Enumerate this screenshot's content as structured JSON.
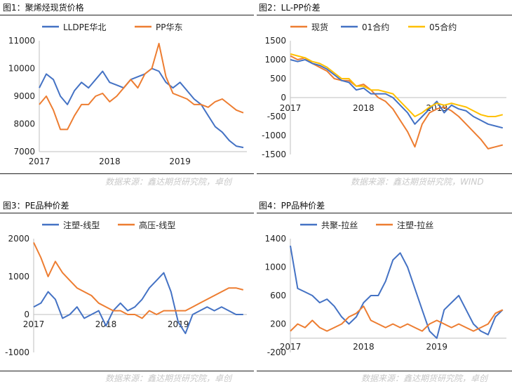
{
  "panels": [
    {
      "title": "图1：聚烯烃现货价格",
      "source": "数据来源：鑫达期货研究院，卓创"
    },
    {
      "title": "图2：LL-PP价差",
      "source": "数据来源：鑫达期货研究院，WIND"
    },
    {
      "title": "图3：PE品种价差",
      "source": "数据来源：鑫达期货研究院，卓创"
    },
    {
      "title": "图4：PP品种价差",
      "source": "数据来源：鑫达期货研究院，卓创"
    }
  ],
  "colors": {
    "blue": "#4472C4",
    "orange": "#ED7D31",
    "gold": "#FFC000"
  },
  "chart_data": [
    {
      "type": "line",
      "ylim": [
        7000,
        11000
      ],
      "yticks": [
        7000,
        8000,
        9000,
        10000,
        11000
      ],
      "xticks": [
        2017,
        2018,
        2019
      ],
      "xlim": [
        2017.0,
        2019.95
      ],
      "legend_position": "top",
      "series": [
        {
          "name": "LLDPE华北",
          "color": "blue",
          "x": [
            2017.0,
            2017.1,
            2017.2,
            2017.3,
            2017.4,
            2017.5,
            2017.6,
            2017.7,
            2017.8,
            2017.9,
            2018.0,
            2018.1,
            2018.2,
            2018.3,
            2018.4,
            2018.5,
            2018.6,
            2018.7,
            2018.8,
            2018.9,
            2019.0,
            2019.1,
            2019.2,
            2019.3,
            2019.4,
            2019.5,
            2019.6,
            2019.7,
            2019.8,
            2019.9
          ],
          "y": [
            9300,
            9800,
            9600,
            9000,
            8700,
            9200,
            9500,
            9300,
            9600,
            9900,
            9500,
            9400,
            9300,
            9600,
            9700,
            9800,
            10000,
            9900,
            9500,
            9300,
            9500,
            9200,
            8900,
            8700,
            8300,
            7900,
            7700,
            7400,
            7200,
            7150
          ]
        },
        {
          "name": "PP华东",
          "color": "orange",
          "x": [
            2017.0,
            2017.1,
            2017.2,
            2017.3,
            2017.4,
            2017.5,
            2017.6,
            2017.7,
            2017.8,
            2017.9,
            2018.0,
            2018.1,
            2018.2,
            2018.3,
            2018.4,
            2018.5,
            2018.6,
            2018.7,
            2018.8,
            2018.9,
            2019.0,
            2019.1,
            2019.2,
            2019.3,
            2019.4,
            2019.5,
            2019.6,
            2019.7,
            2019.8,
            2019.9
          ],
          "y": [
            8700,
            9000,
            8500,
            7800,
            7800,
            8300,
            8700,
            8700,
            9000,
            9100,
            8800,
            9000,
            9300,
            9600,
            9300,
            9800,
            10000,
            10900,
            9700,
            9100,
            9000,
            8900,
            8700,
            8700,
            8600,
            8800,
            8900,
            8700,
            8500,
            8400
          ]
        }
      ]
    },
    {
      "type": "line",
      "ylim": [
        -1500,
        1500
      ],
      "yticks": [
        -1500,
        -1000,
        -500,
        0,
        500,
        1000,
        1500
      ],
      "xticks": [
        2017,
        2018,
        2019
      ],
      "xlim": [
        2017.0,
        2019.95
      ],
      "legend_position": "top",
      "series": [
        {
          "name": "现货",
          "color": "orange",
          "x": [
            2017.0,
            2017.1,
            2017.2,
            2017.3,
            2017.4,
            2017.5,
            2017.6,
            2017.7,
            2017.8,
            2017.9,
            2018.0,
            2018.1,
            2018.2,
            2018.3,
            2018.4,
            2018.5,
            2018.6,
            2018.7,
            2018.8,
            2018.9,
            2019.0,
            2019.1,
            2019.2,
            2019.3,
            2019.4,
            2019.5,
            2019.6,
            2019.7,
            2019.8,
            2019.9
          ],
          "y": [
            1100,
            1000,
            1050,
            900,
            800,
            700,
            500,
            450,
            450,
            300,
            350,
            200,
            0,
            -100,
            -300,
            -600,
            -900,
            -1300,
            -700,
            -400,
            -300,
            -250,
            -350,
            -500,
            -700,
            -900,
            -1100,
            -1350,
            -1300,
            -1250
          ]
        },
        {
          "name": "01合约",
          "color": "blue",
          "x": [
            2017.0,
            2017.1,
            2017.2,
            2017.3,
            2017.4,
            2017.5,
            2017.6,
            2017.7,
            2017.8,
            2017.9,
            2018.0,
            2018.1,
            2018.2,
            2018.3,
            2018.4,
            2018.5,
            2018.6,
            2018.7,
            2018.8,
            2018.9,
            2019.0,
            2019.1,
            2019.2,
            2019.3,
            2019.4,
            2019.5,
            2019.6,
            2019.7,
            2019.8,
            2019.9
          ],
          "y": [
            1000,
            950,
            1000,
            900,
            850,
            750,
            600,
            450,
            400,
            200,
            250,
            100,
            100,
            100,
            0,
            -200,
            -400,
            -700,
            -500,
            -300,
            -100,
            -400,
            -200,
            -300,
            -350,
            -500,
            -600,
            -700,
            -750,
            -800
          ]
        },
        {
          "name": "05合约",
          "color": "gold",
          "x": [
            2017.0,
            2017.1,
            2017.2,
            2017.3,
            2017.4,
            2017.5,
            2017.6,
            2017.7,
            2017.8,
            2017.9,
            2018.0,
            2018.1,
            2018.2,
            2018.3,
            2018.4,
            2018.5,
            2018.6,
            2018.7,
            2018.8,
            2018.9,
            2019.0,
            2019.1,
            2019.2,
            2019.3,
            2019.4,
            2019.5,
            2019.6,
            2019.7,
            2019.8,
            2019.9
          ],
          "y": [
            1150,
            1100,
            1050,
            950,
            900,
            800,
            650,
            500,
            500,
            300,
            300,
            200,
            200,
            150,
            100,
            -100,
            -300,
            -500,
            -400,
            -250,
            -150,
            -200,
            -150,
            -200,
            -250,
            -350,
            -450,
            -500,
            -500,
            -450
          ]
        }
      ]
    },
    {
      "type": "line",
      "ylim": [
        -1000,
        2000
      ],
      "yticks": [
        -1000,
        0,
        1000,
        2000
      ],
      "xticks": [
        2017,
        2018,
        2019
      ],
      "xlim": [
        2017.0,
        2019.95
      ],
      "legend_position": "top",
      "series": [
        {
          "name": "注塑-线型",
          "color": "blue",
          "x": [
            2017.0,
            2017.1,
            2017.2,
            2017.3,
            2017.4,
            2017.5,
            2017.6,
            2017.7,
            2017.8,
            2017.9,
            2018.0,
            2018.1,
            2018.2,
            2018.3,
            2018.4,
            2018.5,
            2018.6,
            2018.7,
            2018.8,
            2018.9,
            2019.0,
            2019.1,
            2019.2,
            2019.3,
            2019.4,
            2019.5,
            2019.6,
            2019.7,
            2019.8,
            2019.9
          ],
          "y": [
            200,
            300,
            600,
            400,
            -100,
            0,
            200,
            -100,
            0,
            100,
            -300,
            100,
            300,
            100,
            200,
            400,
            700,
            900,
            1100,
            600,
            -200,
            -500,
            0,
            100,
            200,
            100,
            200,
            100,
            0,
            0
          ]
        },
        {
          "name": "高压-线型",
          "color": "orange",
          "x": [
            2017.0,
            2017.1,
            2017.2,
            2017.3,
            2017.4,
            2017.5,
            2017.6,
            2017.7,
            2017.8,
            2017.9,
            2018.0,
            2018.1,
            2018.2,
            2018.3,
            2018.4,
            2018.5,
            2018.6,
            2018.7,
            2018.8,
            2018.9,
            2019.0,
            2019.1,
            2019.2,
            2019.3,
            2019.4,
            2019.5,
            2019.6,
            2019.7,
            2019.8,
            2019.9
          ],
          "y": [
            1900,
            1500,
            1000,
            1400,
            1100,
            900,
            700,
            600,
            500,
            300,
            200,
            100,
            100,
            0,
            0,
            -100,
            100,
            0,
            100,
            100,
            100,
            100,
            200,
            300,
            400,
            500,
            600,
            700,
            700,
            650
          ]
        }
      ]
    },
    {
      "type": "line",
      "ylim": [
        -200,
        1400
      ],
      "yticks": [
        -200,
        200,
        600,
        1000,
        1400
      ],
      "xticks": [
        2017,
        2018,
        2019
      ],
      "xlim": [
        2017.0,
        2019.95
      ],
      "legend_position": "top",
      "series": [
        {
          "name": "共聚-拉丝",
          "color": "blue",
          "x": [
            2017.0,
            2017.1,
            2017.2,
            2017.3,
            2017.4,
            2017.5,
            2017.6,
            2017.7,
            2017.8,
            2017.9,
            2018.0,
            2018.1,
            2018.2,
            2018.3,
            2018.4,
            2018.5,
            2018.6,
            2018.7,
            2018.8,
            2018.9,
            2019.0,
            2019.1,
            2019.2,
            2019.3,
            2019.4,
            2019.5,
            2019.6,
            2019.7,
            2019.8,
            2019.9
          ],
          "y": [
            1300,
            700,
            650,
            600,
            500,
            550,
            450,
            300,
            200,
            300,
            500,
            600,
            600,
            800,
            1100,
            1200,
            1000,
            700,
            400,
            100,
            0,
            400,
            500,
            600,
            400,
            200,
            100,
            50,
            300,
            400
          ]
        },
        {
          "name": "注塑-拉丝",
          "color": "orange",
          "x": [
            2017.0,
            2017.1,
            2017.2,
            2017.3,
            2017.4,
            2017.5,
            2017.6,
            2017.7,
            2017.8,
            2017.9,
            2018.0,
            2018.1,
            2018.2,
            2018.3,
            2018.4,
            2018.5,
            2018.6,
            2018.7,
            2018.8,
            2018.9,
            2019.0,
            2019.1,
            2019.2,
            2019.3,
            2019.4,
            2019.5,
            2019.6,
            2019.7,
            2019.8,
            2019.9
          ],
          "y": [
            100,
            200,
            150,
            250,
            150,
            100,
            150,
            200,
            300,
            350,
            450,
            250,
            200,
            150,
            200,
            150,
            200,
            150,
            100,
            200,
            250,
            200,
            150,
            200,
            150,
            100,
            150,
            200,
            350,
            400
          ]
        }
      ]
    }
  ]
}
